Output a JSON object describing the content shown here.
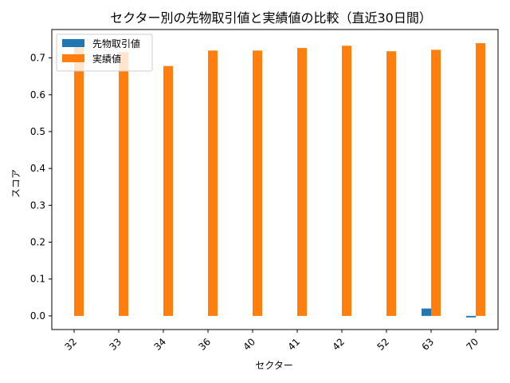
{
  "chart_data": {
    "type": "bar",
    "title": "セクター別の先物取引値と実績値の比較（直近30日間）",
    "xlabel": "セクター",
    "ylabel": "スコア",
    "categories": [
      "32",
      "33",
      "34",
      "36",
      "40",
      "41",
      "42",
      "52",
      "63",
      "70"
    ],
    "series": [
      {
        "name": "先物取引値",
        "color": "#1f77b4",
        "values": [
          0.0,
          0.0,
          0.0,
          0.0,
          0.0,
          0.0,
          0.0,
          0.0,
          0.02,
          -0.004
        ]
      },
      {
        "name": "実績値",
        "color": "#ff7f0e",
        "values": [
          0.738,
          0.716,
          0.678,
          0.72,
          0.72,
          0.727,
          0.733,
          0.718,
          0.722,
          0.74
        ]
      }
    ],
    "ylim": [
      -0.037,
      0.777
    ],
    "yticks": [
      0.0,
      0.1,
      0.2,
      0.3,
      0.4,
      0.5,
      0.6,
      0.7
    ],
    "ytick_labels": [
      "0.0",
      "0.1",
      "0.2",
      "0.3",
      "0.4",
      "0.5",
      "0.6",
      "0.7"
    ],
    "legend_position": "top-left",
    "grid": false
  }
}
